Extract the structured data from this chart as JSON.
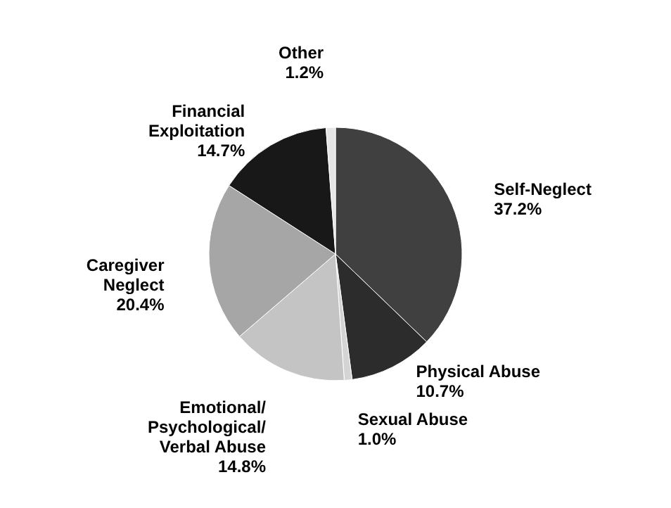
{
  "chart_data": {
    "type": "pie",
    "categories": [
      "Self-Neglect",
      "Physical Abuse",
      "Sexual Abuse",
      "Emotional/\nPsychological/\nVerbal Abuse",
      "Caregiver\nNeglect",
      "Financial\nExploitation",
      "Other"
    ],
    "values": [
      37.2,
      10.7,
      1.0,
      14.8,
      20.4,
      14.7,
      1.2
    ],
    "value_labels": [
      "37.2%",
      "10.7%",
      "1.0%",
      "14.8%",
      "20.4%",
      "14.7%",
      "1.2%"
    ],
    "colors": [
      "#404040",
      "#2c2c2c",
      "#d4d4d4",
      "#c4c4c4",
      "#a6a6a6",
      "#181818",
      "#e6e6e6"
    ],
    "legend": false
  }
}
